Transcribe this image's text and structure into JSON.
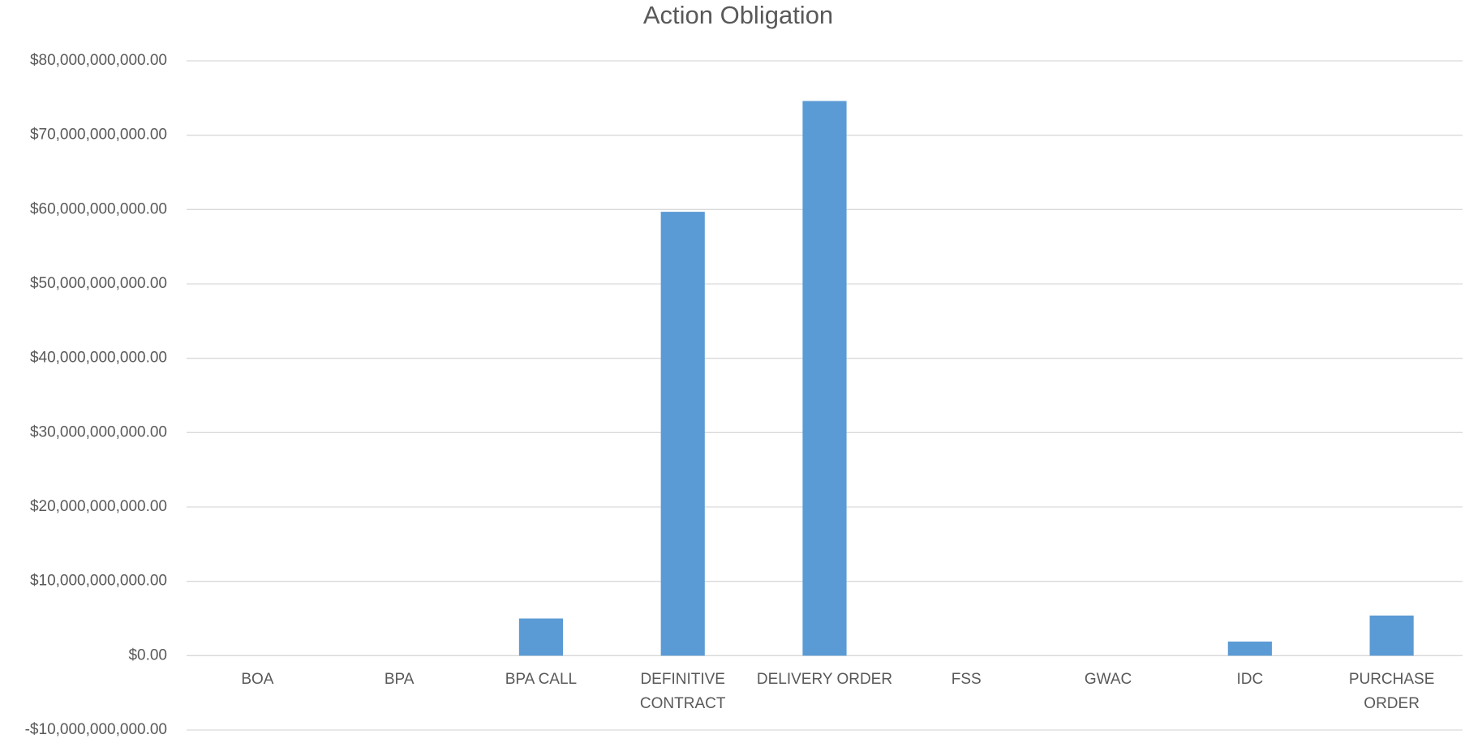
{
  "chart_data": {
    "type": "bar",
    "title": "Action Obligation",
    "categories": [
      "BOA",
      "BPA",
      "BPA CALL",
      "DEFINITIVE CONTRACT",
      "DELIVERY ORDER",
      "FSS",
      "GWAC",
      "IDC",
      "PURCHASE ORDER"
    ],
    "values": [
      0,
      0,
      5000000000,
      59700000000,
      74600000000,
      0,
      0,
      1900000000,
      5400000000
    ],
    "color": "#5b9bd5",
    "ylim": [
      -10000000000,
      80000000000
    ],
    "yticks": [
      {
        "value": -10000000000,
        "label": "-$10,000,000,000.00"
      },
      {
        "value": 0,
        "label": "$0.00"
      },
      {
        "value": 10000000000,
        "label": "$10,000,000,000.00"
      },
      {
        "value": 20000000000,
        "label": "$20,000,000,000.00"
      },
      {
        "value": 30000000000,
        "label": "$30,000,000,000.00"
      },
      {
        "value": 40000000000,
        "label": "$40,000,000,000.00"
      },
      {
        "value": 50000000000,
        "label": "$50,000,000,000.00"
      },
      {
        "value": 60000000000,
        "label": "$60,000,000,000.00"
      },
      {
        "value": 70000000000,
        "label": "$70,000,000,000.00"
      },
      {
        "value": 80000000000,
        "label": "$80,000,000,000.00"
      }
    ],
    "grid": true
  }
}
